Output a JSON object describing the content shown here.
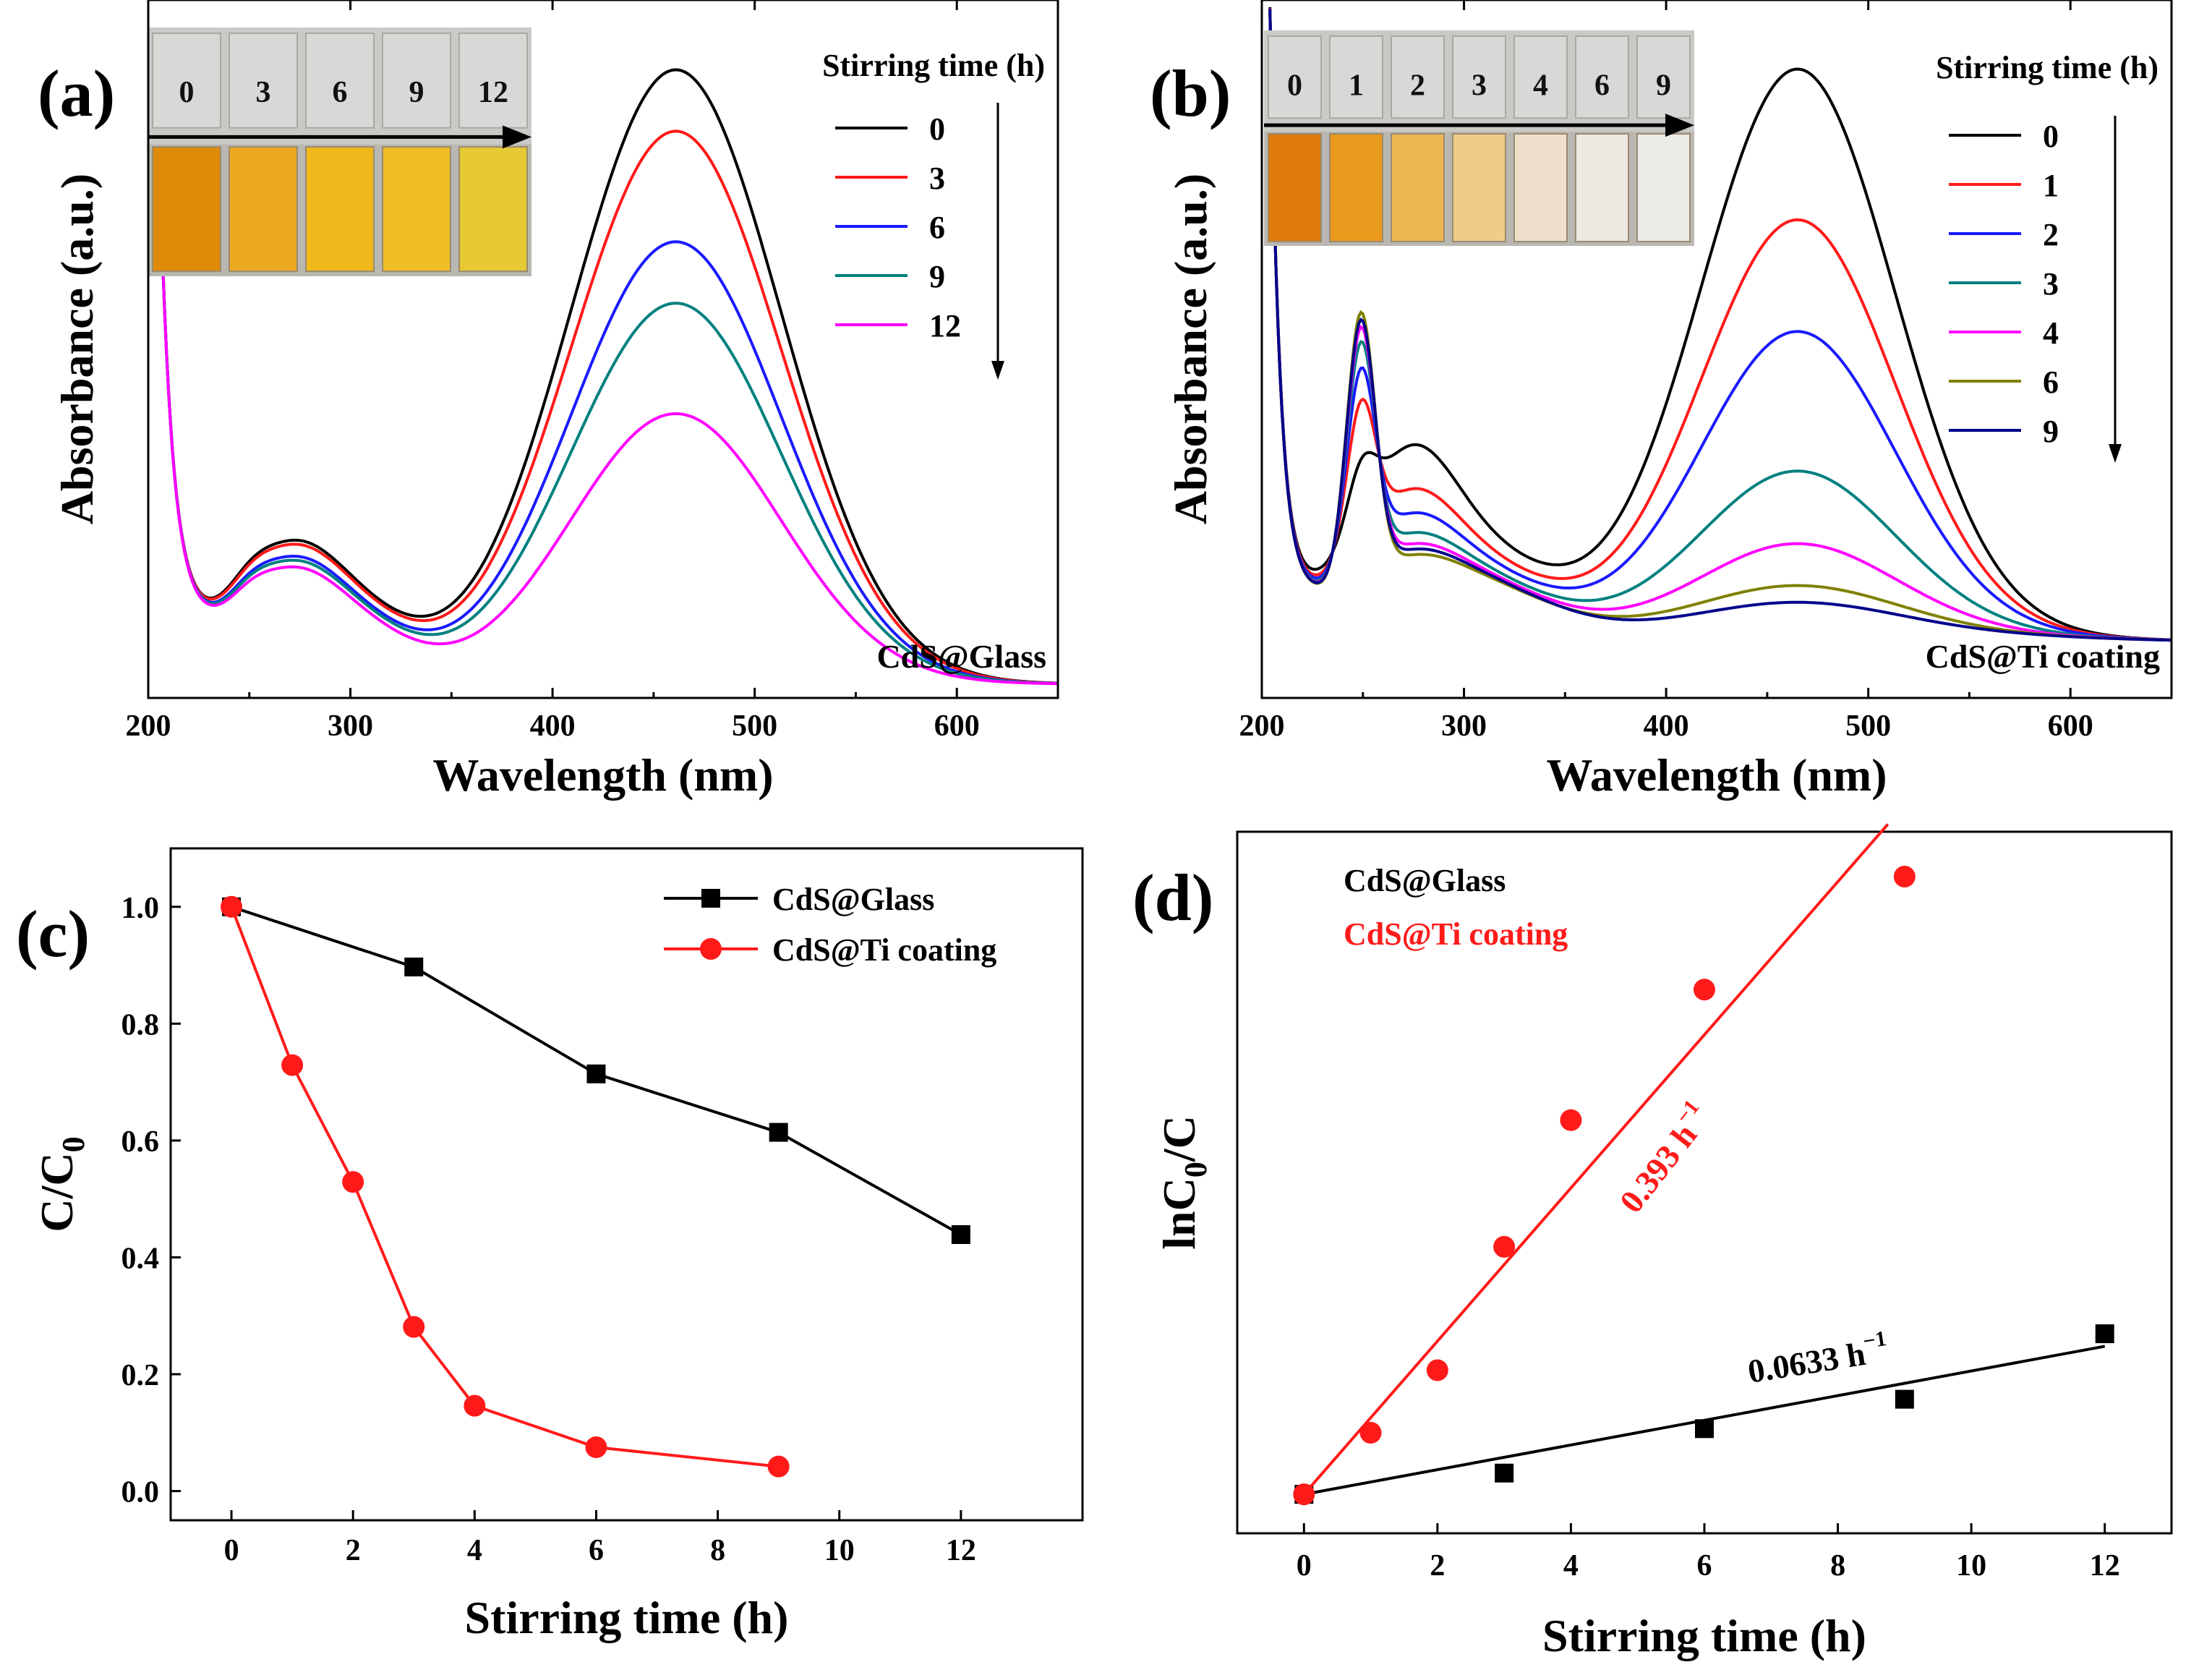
{
  "chart_data": [
    {
      "panel": "(a)",
      "type": "line",
      "xlabel": "Wavelength (nm)",
      "ylabel": "Absorbance (a.u.)",
      "xlim": [
        200,
        650
      ],
      "xticks": [
        200,
        300,
        400,
        500,
        600
      ],
      "sample_label": "CdS@Glass",
      "legend_title": "Stirring time (h)",
      "inset_labels": [
        "0",
        "3",
        "6",
        "9",
        "12"
      ],
      "inset_colors": [
        "#e08a0a",
        "#eba820",
        "#f1b81c",
        "#efbe26",
        "#e6c934"
      ],
      "series": [
        {
          "name": "0",
          "color": "#000000",
          "peak": 1.0,
          "scale": 1.0
        },
        {
          "name": "3",
          "color": "#ff1a1a",
          "peak": 0.9,
          "scale": 0.97
        },
        {
          "name": "6",
          "color": "#1a1aff",
          "peak": 0.72,
          "scale": 0.88
        },
        {
          "name": "9",
          "color": "#008080",
          "peak": 0.62,
          "scale": 0.85
        },
        {
          "name": "12",
          "color": "#ff00ff",
          "peak": 0.44,
          "scale": 0.8
        }
      ]
    },
    {
      "panel": "(b)",
      "type": "line",
      "xlabel": "Wavelength (nm)",
      "ylabel": "Absorbance (a.u.)",
      "xlim": [
        200,
        650
      ],
      "xticks": [
        200,
        300,
        400,
        500,
        600
      ],
      "sample_label": "CdS@Ti coating",
      "legend_title": "Stirring time (h)",
      "inset_labels": [
        "0",
        "1",
        "2",
        "3",
        "4",
        "6",
        "9"
      ],
      "inset_colors": [
        "#e07a0a",
        "#e99a1c",
        "#eeb650",
        "#f0cc8a",
        "#efe0cc",
        "#eee8e2",
        "#ecebe7"
      ],
      "series": [
        {
          "name": "0",
          "color": "#000000",
          "peak": 1.0,
          "uvpeak": 0.0
        },
        {
          "name": "1",
          "color": "#ff1a1a",
          "peak": 0.73,
          "uvpeak": 0.4
        },
        {
          "name": "2",
          "color": "#1a1aff",
          "peak": 0.53,
          "uvpeak": 0.62
        },
        {
          "name": "3",
          "color": "#008080",
          "peak": 0.28,
          "uvpeak": 0.8
        },
        {
          "name": "4",
          "color": "#ff00ff",
          "peak": 0.15,
          "uvpeak": 0.9
        },
        {
          "name": "6",
          "color": "#808000",
          "peak": 0.075,
          "uvpeak": 1.0
        },
        {
          "name": "9",
          "color": "#00008b",
          "peak": 0.045,
          "uvpeak": 0.95
        }
      ]
    },
    {
      "panel": "(c)",
      "type": "line",
      "xlabel": "Stirring time (h)",
      "ylabel": "C/C",
      "ylabel_sub": "0",
      "xlim": [
        -1,
        14
      ],
      "ylim": [
        -0.05,
        1.1
      ],
      "xticks": [
        0,
        2,
        4,
        6,
        8,
        10,
        12
      ],
      "yticks": [
        "0.0",
        "0.2",
        "0.4",
        "0.6",
        "0.8",
        "1.0"
      ],
      "series": [
        {
          "name": "CdS@Glass",
          "color": "#000000",
          "marker": "square",
          "x": [
            0,
            3,
            6,
            9,
            12
          ],
          "y": [
            1.0,
            0.897,
            0.714,
            0.614,
            0.439
          ]
        },
        {
          "name": "CdS@Ti coating",
          "color": "#ff1a1a",
          "marker": "circle",
          "x": [
            0,
            1,
            2,
            3,
            4,
            6,
            9
          ],
          "y": [
            1.0,
            0.729,
            0.529,
            0.281,
            0.146,
            0.075,
            0.042
          ]
        }
      ]
    },
    {
      "panel": "(d)",
      "type": "scatter",
      "xlabel": "Stirring time (h)",
      "ylabel": "lnC",
      "ylabel_sub": "0",
      "ylabel_tail": "/C",
      "xlim": [
        -1,
        13
      ],
      "ylim": [
        -0.2,
        3.4
      ],
      "xticks": [
        0,
        2,
        4,
        6,
        8,
        10,
        12
      ],
      "series": [
        {
          "name": "CdS@Glass",
          "color": "#000000",
          "marker": "square",
          "x": [
            0,
            3,
            6,
            9,
            12
          ],
          "y": [
            0,
            0.109,
            0.337,
            0.488,
            0.824
          ],
          "fit_slope": 0.0633,
          "fit_label": "0.0633 h",
          "fit_sup": "−1"
        },
        {
          "name": "CdS@Ti coating",
          "color": "#ff1a1a",
          "marker": "circle",
          "x": [
            0,
            1,
            2,
            3,
            4,
            6,
            9
          ],
          "y": [
            0,
            0.316,
            0.637,
            1.27,
            1.92,
            2.59,
            3.17
          ],
          "fit_slope": 0.393,
          "fit_label": "0.393 h",
          "fit_sup": "−1"
        }
      ]
    }
  ]
}
